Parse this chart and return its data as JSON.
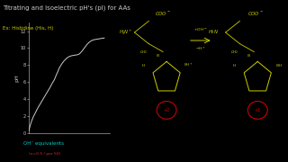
{
  "background_color": "#000000",
  "title": "Titrating and Isoelectric pH's (pI) for AAs",
  "subtitle": "Ex: Histidine (His, H)",
  "xlabel_text": "OH⁻ equivalents",
  "xlabel_fraction": "(n=0.5 / per 50)",
  "ylabel_text": "pH",
  "y_tick_labels": [
    "0",
    "2",
    "4",
    "6",
    "8",
    "10",
    "12"
  ],
  "y_tick_values": [
    0,
    2,
    4,
    6,
    8,
    10,
    12
  ],
  "title_color": "#cccccc",
  "subtitle_color": "#cccc00",
  "curve_color": "#cccccc",
  "axis_color": "#cccccc",
  "tick_color": "#cccccc",
  "xlabel_color": "#00cccc",
  "xlabel_fraction_color": "#cc3333",
  "struct_color": "#cccc00",
  "red_circle_color": "#cc0000",
  "curve_x": [
    0.0,
    0.05,
    0.1,
    0.18,
    0.25,
    0.35,
    0.45,
    0.55,
    0.65,
    0.75,
    0.85,
    0.92,
    0.98,
    1.02,
    1.06,
    1.1,
    1.15,
    1.2,
    1.3,
    1.4,
    1.5,
    1.6,
    1.7,
    1.8,
    1.85,
    1.9,
    1.93,
    1.96,
    1.98,
    2.0,
    2.02,
    2.05,
    2.1,
    2.15,
    2.2,
    2.3,
    2.4,
    2.5,
    2.6,
    2.7,
    2.8,
    2.9,
    3.0
  ],
  "curve_y": [
    0.2,
    0.8,
    1.3,
    1.9,
    2.3,
    2.9,
    3.4,
    3.9,
    4.4,
    4.9,
    5.4,
    5.8,
    6.1,
    6.3,
    6.6,
    6.9,
    7.2,
    7.6,
    8.1,
    8.5,
    8.8,
    9.0,
    9.1,
    9.15,
    9.18,
    9.2,
    9.22,
    9.25,
    9.28,
    9.3,
    9.35,
    9.45,
    9.6,
    9.8,
    10.0,
    10.4,
    10.7,
    10.9,
    11.0,
    11.05,
    11.1,
    11.15,
    11.2
  ],
  "ylim": [
    0,
    13
  ],
  "xlim": [
    0,
    3.2
  ],
  "figsize": [
    3.2,
    1.8
  ],
  "dpi": 100
}
